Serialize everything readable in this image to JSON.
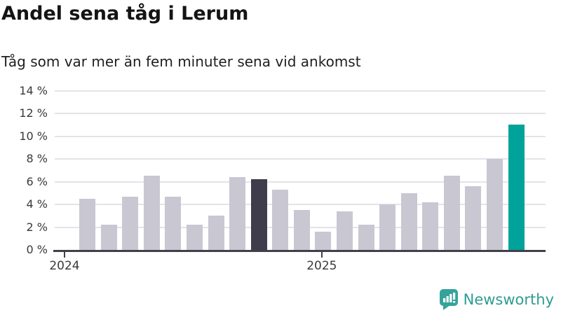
{
  "title": "Andel sena tåg i Lerum",
  "subtitle": "Tåg som var mer än fem minuter sena vid ankomst",
  "branding": {
    "logo_text": "Newsworthy",
    "logo_icon": "speech-bubble-bar-chart-icon",
    "logo_color": "#2f9c93"
  },
  "chart_data": {
    "type": "bar",
    "title": "Andel sena tåg i Lerum",
    "subtitle": "Tåg som var mer än fem minuter sena vid ankomst",
    "unit": "%",
    "x": [
      "2024-01",
      "2024-02",
      "2024-03",
      "2024-04",
      "2024-05",
      "2024-06",
      "2024-07",
      "2024-08",
      "2024-09",
      "2024-10",
      "2024-11",
      "2024-12",
      "2025-01",
      "2025-02",
      "2025-03",
      "2025-04",
      "2025-05",
      "2025-06",
      "2025-07",
      "2025-08",
      "2025-09"
    ],
    "values": [
      4.5,
      2.2,
      4.7,
      6.5,
      4.7,
      2.2,
      3.0,
      6.4,
      6.2,
      5.3,
      3.5,
      1.6,
      3.4,
      2.2,
      4.0,
      5.0,
      4.2,
      6.5,
      5.6,
      8.0,
      11.0
    ],
    "ylim": [
      0,
      14
    ],
    "y_ticks": [
      0,
      2,
      4,
      6,
      8,
      10,
      12,
      14
    ],
    "y_tick_suffix": " %",
    "x_year_ticks": [
      {
        "label": "2024",
        "month_index": 0
      },
      {
        "label": "2025",
        "month_index": 12
      }
    ],
    "grid": "horizontal",
    "legend": "none",
    "highlight": {
      "dark_index": 8,
      "accent_index": 20,
      "note": "dark = same month previous year, accent = latest month"
    },
    "colors": {
      "bar_default": "#c9c7d2",
      "bar_dark": "#3f3d4b",
      "bar_accent": "#00a399",
      "gridline": "#e4e3e9",
      "axis_line": "#41404a",
      "axis_text": "#3a3a3a"
    }
  }
}
